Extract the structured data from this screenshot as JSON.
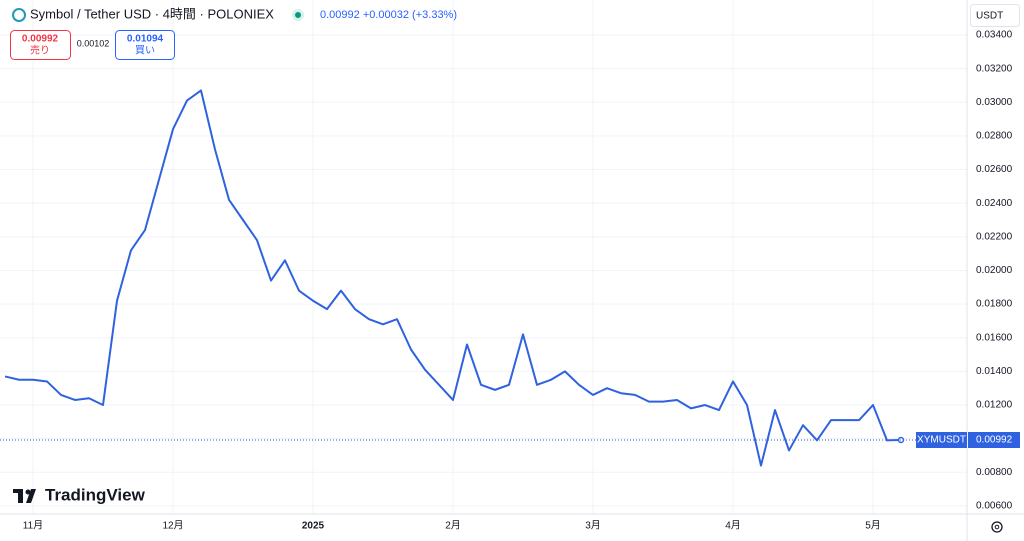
{
  "header": {
    "title": "Symbol / Tether USD · 4時間 · POLONIEX",
    "quote": "0.00992 +0.00032 (+3.33%)"
  },
  "order_panel": {
    "sell_price": "0.00992",
    "sell_label": "売り",
    "spread": "0.00102",
    "buy_price": "0.01094",
    "buy_label": "買い"
  },
  "currency": "USDT",
  "logo": "TradingView",
  "chart_data": {
    "type": "line",
    "categories": [
      null,
      null,
      "11月",
      null,
      null,
      null,
      null,
      null,
      null,
      null,
      null,
      null,
      "12月",
      null,
      null,
      null,
      null,
      null,
      null,
      null,
      null,
      null,
      "2025",
      null,
      null,
      null,
      null,
      null,
      null,
      null,
      null,
      null,
      "2月",
      null,
      null,
      null,
      null,
      null,
      null,
      null,
      null,
      null,
      "3月",
      null,
      null,
      null,
      null,
      null,
      null,
      null,
      null,
      null,
      "4月",
      null,
      null,
      null,
      null,
      null,
      null,
      null,
      null,
      null,
      "5月",
      null,
      null
    ],
    "series": [
      {
        "name": "XYMUSDT",
        "color": "#2f62e0",
        "values": [
          0.0137,
          0.0135,
          0.0135,
          0.0134,
          0.0126,
          0.0123,
          0.0124,
          0.012,
          0.0182,
          0.0212,
          0.0224,
          0.0254,
          0.0284,
          0.0301,
          0.0307,
          0.0272,
          0.0242,
          0.023,
          0.0218,
          0.0194,
          0.0206,
          0.0188,
          0.0182,
          0.0177,
          0.0188,
          0.0177,
          0.0171,
          0.0168,
          0.0171,
          0.0153,
          0.0141,
          0.0132,
          0.0123,
          0.0156,
          0.0132,
          0.0129,
          0.0132,
          0.0162,
          0.0132,
          0.0135,
          0.014,
          0.0132,
          0.0126,
          0.013,
          0.0127,
          0.0126,
          0.0122,
          0.0122,
          0.0123,
          0.0118,
          0.012,
          0.0117,
          0.0134,
          0.012,
          0.0084,
          0.0117,
          0.0093,
          0.0108,
          0.0099,
          0.0111,
          0.0111,
          0.0111,
          0.012,
          0.0099,
          0.00992
        ]
      }
    ],
    "last_price": 0.00992,
    "ylim": [
      0.00552,
      0.03608
    ],
    "yticks": [
      {
        "value": 0.006,
        "label": "0.00600"
      },
      {
        "value": 0.008,
        "label": "0.00800"
      },
      {
        "value": 0.01,
        "label": "0.01000"
      },
      {
        "value": 0.012,
        "label": "0.01200"
      },
      {
        "value": 0.014,
        "label": "0.01400"
      },
      {
        "value": 0.016,
        "label": "0.01600"
      },
      {
        "value": 0.018,
        "label": "0.01800"
      },
      {
        "value": 0.02,
        "label": "0.02000"
      },
      {
        "value": 0.022,
        "label": "0.02200"
      },
      {
        "value": 0.024,
        "label": "0.02400"
      },
      {
        "value": 0.026,
        "label": "0.02600"
      },
      {
        "value": 0.028,
        "label": "0.02800"
      },
      {
        "value": 0.03,
        "label": "0.03000"
      },
      {
        "value": 0.032,
        "label": "0.03200"
      },
      {
        "value": 0.034,
        "label": "0.03400"
      }
    ],
    "grid": true
  }
}
